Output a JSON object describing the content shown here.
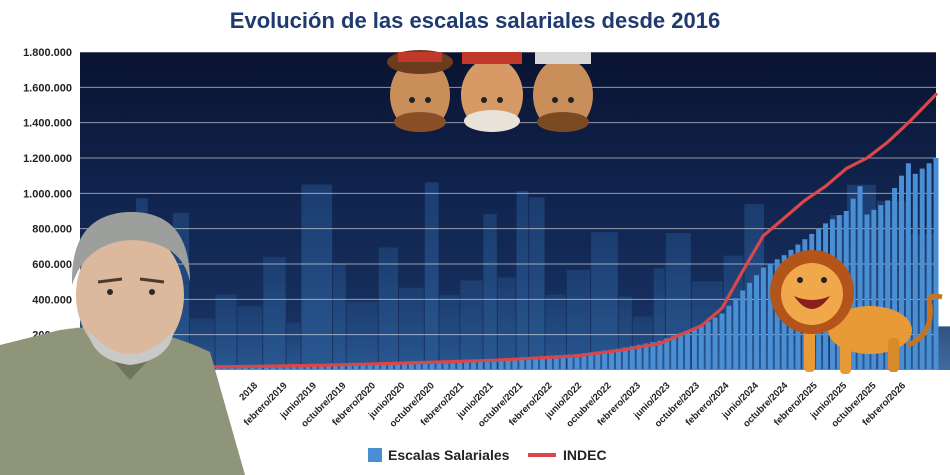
{
  "chart_data": {
    "type": "bar",
    "title": "Evolución de las escalas salariales desde 2016",
    "ylim": [
      0,
      1800000
    ],
    "y_ticks": [
      "1.800.000",
      "1.600.000",
      "1.400.000",
      "1.200.000",
      "1.000.000",
      "800.000",
      "600.000",
      "400.000",
      "200.000",
      "0"
    ],
    "x_start": "2016-01",
    "x_end": "2026-05",
    "x_tick_labels": [
      "2018",
      "febrero/2019",
      "junio/2019",
      "octubre/2019",
      "febrero/2020",
      "junio/2020",
      "octubre/2020",
      "febrero/2021",
      "junio/2021",
      "octubre/2021",
      "febrero/2022",
      "junio/2022",
      "octubre/2022",
      "febrero/2023",
      "junio/2023",
      "octubre/2023",
      "febrero/2024",
      "junio/2024",
      "octubre/2024",
      "febrero/2025",
      "junio/2025",
      "octubre/2025",
      "febrero/2026"
    ],
    "legend_position": "bottom",
    "series": [
      {
        "name": "Escalas Salariales",
        "type": "bar",
        "color": "#4a8fd4",
        "points": [
          [
            "2016-01",
            15000
          ],
          [
            "2017-01",
            19000
          ],
          [
            "2018-01",
            24000
          ],
          [
            "2019-01",
            32000
          ],
          [
            "2020-01",
            45000
          ],
          [
            "2021-01",
            62000
          ],
          [
            "2022-01",
            90000
          ],
          [
            "2022-07",
            120000
          ],
          [
            "2023-01",
            165000
          ],
          [
            "2023-07",
            250000
          ],
          [
            "2023-10",
            320000
          ],
          [
            "2024-01",
            450000
          ],
          [
            "2024-04",
            580000
          ],
          [
            "2024-07",
            650000
          ],
          [
            "2024-10",
            740000
          ],
          [
            "2025-01",
            830000
          ],
          [
            "2025-04",
            900000
          ],
          [
            "2025-06",
            1040000
          ],
          [
            "2025-07",
            880000
          ],
          [
            "2025-10",
            960000
          ],
          [
            "2026-01",
            1170000
          ],
          [
            "2026-02",
            1110000
          ],
          [
            "2026-05",
            1200000
          ]
        ]
      },
      {
        "name": "INDEC",
        "type": "line",
        "color": "#d9474a",
        "points": [
          [
            "2016-01",
            12000
          ],
          [
            "2017-01",
            16000
          ],
          [
            "2018-01",
            20000
          ],
          [
            "2019-01",
            28000
          ],
          [
            "2020-01",
            40000
          ],
          [
            "2021-01",
            55000
          ],
          [
            "2022-01",
            80000
          ],
          [
            "2022-07",
            110000
          ],
          [
            "2023-01",
            150000
          ],
          [
            "2023-07",
            250000
          ],
          [
            "2023-10",
            350000
          ],
          [
            "2024-01",
            560000
          ],
          [
            "2024-04",
            760000
          ],
          [
            "2024-07",
            860000
          ],
          [
            "2024-10",
            960000
          ],
          [
            "2025-01",
            1040000
          ],
          [
            "2025-04",
            1140000
          ],
          [
            "2025-07",
            1200000
          ],
          [
            "2025-10",
            1290000
          ],
          [
            "2026-01",
            1400000
          ],
          [
            "2026-05",
            1560000
          ]
        ]
      }
    ]
  }
}
